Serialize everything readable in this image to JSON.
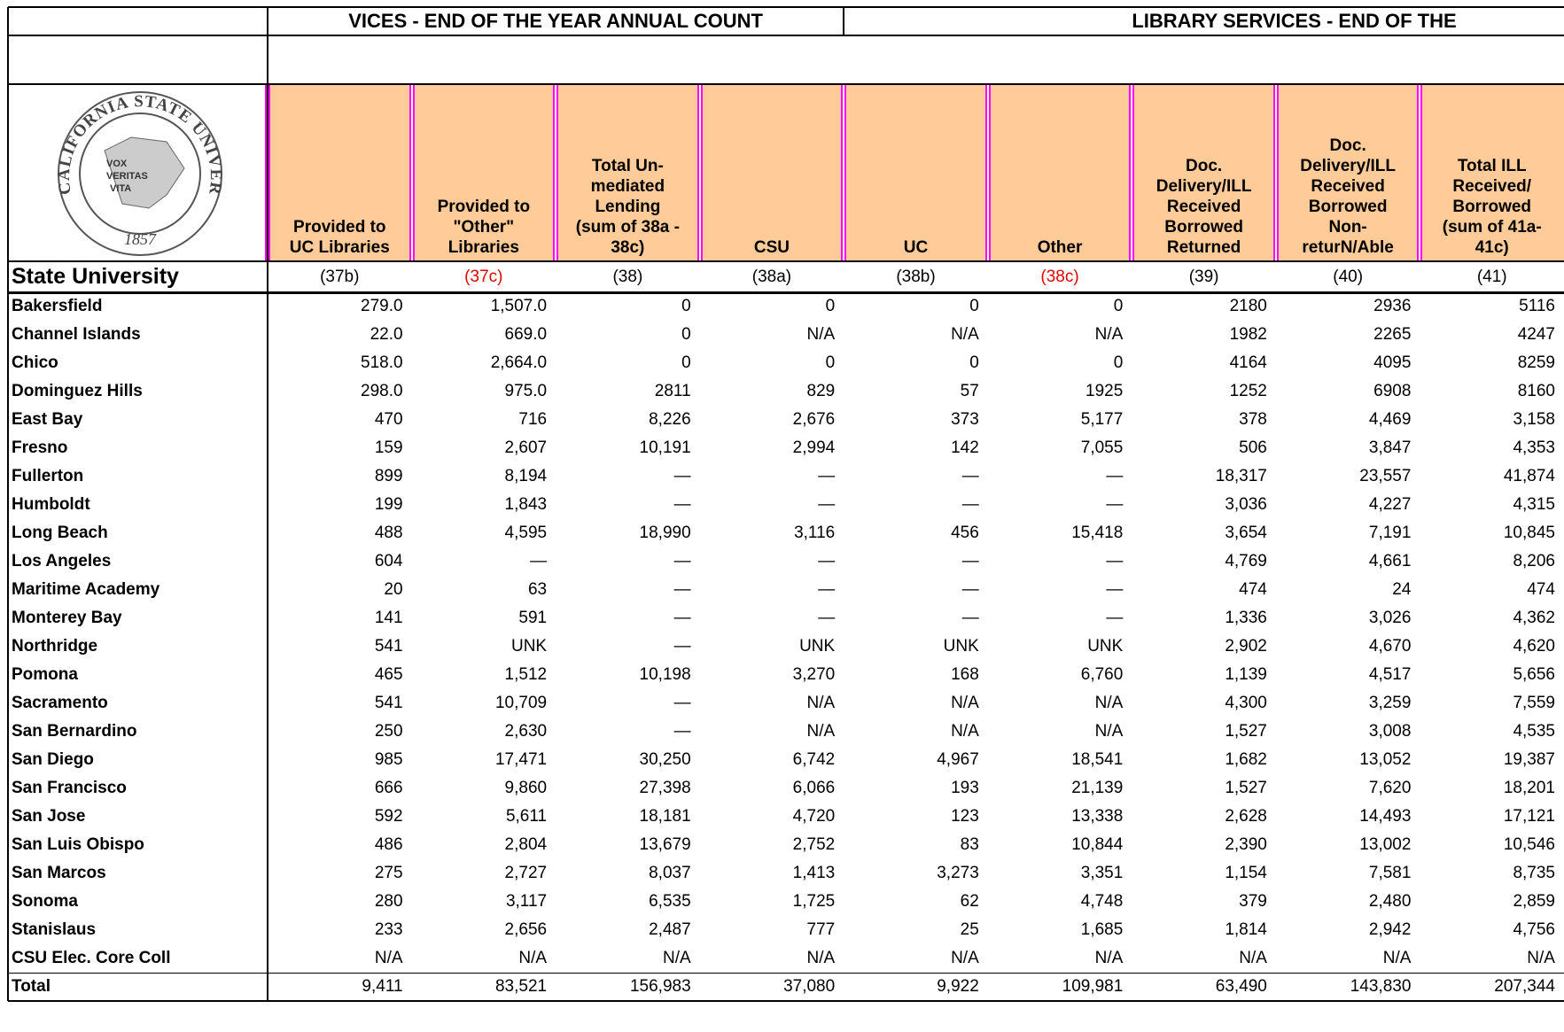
{
  "title_row": {
    "left": "VICES - END OF THE YEAR ANNUAL COUNT",
    "right": "LIBRARY SERVICES - END OF THE"
  },
  "logo": {
    "ring": "THE CALIFORNIA STATE UNIVERSITY",
    "motto": [
      "VOX",
      "VERITAS",
      "VITA"
    ],
    "year": "1857"
  },
  "table": {
    "row_header": "State University",
    "columns": [
      {
        "label": "Provided to\nUC Libraries",
        "code": "(37b)",
        "code_color": "#000000"
      },
      {
        "label": "Provided to\n\"Other\"\nLibraries",
        "code": "(37c)",
        "code_color": "#e00000"
      },
      {
        "label": "Total Un-\nmediated\nLending\n(sum of 38a -\n38c)",
        "code": "(38)",
        "code_color": "#000000"
      },
      {
        "label": "CSU",
        "code": "(38a)",
        "code_color": "#000000"
      },
      {
        "label": "UC",
        "code": "(38b)",
        "code_color": "#000000"
      },
      {
        "label": "Other",
        "code": "(38c)",
        "code_color": "#e00000"
      },
      {
        "label": "Doc.\nDelivery/ILL\nReceived\nBorrowed\nReturned",
        "code": "(39)",
        "code_color": "#000000"
      },
      {
        "label": "Doc.\nDelivery/ILL\nReceived\nBorrowed\nNon-\nreturN/Able",
        "code": "(40)",
        "code_color": "#000000"
      },
      {
        "label": "Total ILL\nReceived/\nBorrowed\n(sum of 41a-\n41c)",
        "code": "(41)",
        "code_color": "#000000"
      }
    ],
    "rows": [
      [
        "Bakersfield",
        "279.0",
        "1,507.0",
        "0",
        "0",
        "0",
        "0",
        "2180",
        "2936",
        "5116"
      ],
      [
        "Channel Islands",
        "22.0",
        "669.0",
        "0",
        "N/A",
        "N/A",
        "N/A",
        "1982",
        "2265",
        "4247"
      ],
      [
        "Chico",
        "518.0",
        "2,664.0",
        "0",
        "0",
        "0",
        "0",
        "4164",
        "4095",
        "8259"
      ],
      [
        "Dominguez Hills",
        "298.0",
        "975.0",
        "2811",
        "829",
        "57",
        "1925",
        "1252",
        "6908",
        "8160"
      ],
      [
        "East Bay",
        "470",
        "716",
        "8,226",
        "2,676",
        "373",
        "5,177",
        "378",
        "4,469",
        "3,158"
      ],
      [
        "Fresno",
        "159",
        "2,607",
        "10,191",
        "2,994",
        "142",
        "7,055",
        "506",
        "3,847",
        "4,353"
      ],
      [
        "Fullerton",
        "899",
        "8,194",
        "—",
        "—",
        "—",
        "—",
        "18,317",
        "23,557",
        "41,874"
      ],
      [
        "Humboldt",
        "199",
        "1,843",
        "—",
        "—",
        "—",
        "—",
        "3,036",
        "4,227",
        "4,315"
      ],
      [
        "Long Beach",
        "488",
        "4,595",
        "18,990",
        "3,116",
        "456",
        "15,418",
        "3,654",
        "7,191",
        "10,845"
      ],
      [
        "Los Angeles",
        "604",
        "—",
        "—",
        "—",
        "—",
        "—",
        "4,769",
        "4,661",
        "8,206"
      ],
      [
        "Maritime Academy",
        "20",
        "63",
        "—",
        "—",
        "—",
        "—",
        "474",
        "24",
        "474"
      ],
      [
        "Monterey Bay",
        "141",
        "591",
        "—",
        "—",
        "—",
        "—",
        "1,336",
        "3,026",
        "4,362"
      ],
      [
        "Northridge",
        "541",
        "UNK",
        "—",
        "UNK",
        "UNK",
        "UNK",
        "2,902",
        "4,670",
        "4,620"
      ],
      [
        "Pomona",
        "465",
        "1,512",
        "10,198",
        "3,270",
        "168",
        "6,760",
        "1,139",
        "4,517",
        "5,656"
      ],
      [
        "Sacramento",
        "541",
        "10,709",
        "—",
        "N/A",
        "N/A",
        "N/A",
        "4,300",
        "3,259",
        "7,559"
      ],
      [
        "San Bernardino",
        "250",
        "2,630",
        "—",
        "N/A",
        "N/A",
        "N/A",
        "1,527",
        "3,008",
        "4,535"
      ],
      [
        "San Diego",
        "985",
        "17,471",
        "30,250",
        "6,742",
        "4,967",
        "18,541",
        "1,682",
        "13,052",
        "19,387"
      ],
      [
        "San Francisco",
        "666",
        "9,860",
        "27,398",
        "6,066",
        "193",
        "21,139",
        "1,527",
        "7,620",
        "18,201"
      ],
      [
        "San Jose",
        "592",
        "5,611",
        "18,181",
        "4,720",
        "123",
        "13,338",
        "2,628",
        "14,493",
        "17,121"
      ],
      [
        "San Luis Obispo",
        "486",
        "2,804",
        "13,679",
        "2,752",
        "83",
        "10,844",
        "2,390",
        "13,002",
        "10,546"
      ],
      [
        "San Marcos",
        "275",
        "2,727",
        "8,037",
        "1,413",
        "3,273",
        "3,351",
        "1,154",
        "7,581",
        "8,735"
      ],
      [
        "Sonoma",
        "280",
        "3,117",
        "6,535",
        "1,725",
        "62",
        "4,748",
        "379",
        "2,480",
        "2,859"
      ],
      [
        "Stanislaus",
        "233",
        "2,656",
        "2,487",
        "777",
        "25",
        "1,685",
        "1,814",
        "2,942",
        "4,756"
      ],
      [
        "CSU Elec. Core Coll",
        "N/A",
        "N/A",
        "N/A",
        "N/A",
        "N/A",
        "N/A",
        "N/A",
        "N/A",
        "N/A"
      ],
      [
        "Total",
        "9,411",
        "83,521",
        "156,983",
        "37,080",
        "9,922",
        "109,981",
        "63,490",
        "143,830",
        "207,344"
      ]
    ]
  }
}
